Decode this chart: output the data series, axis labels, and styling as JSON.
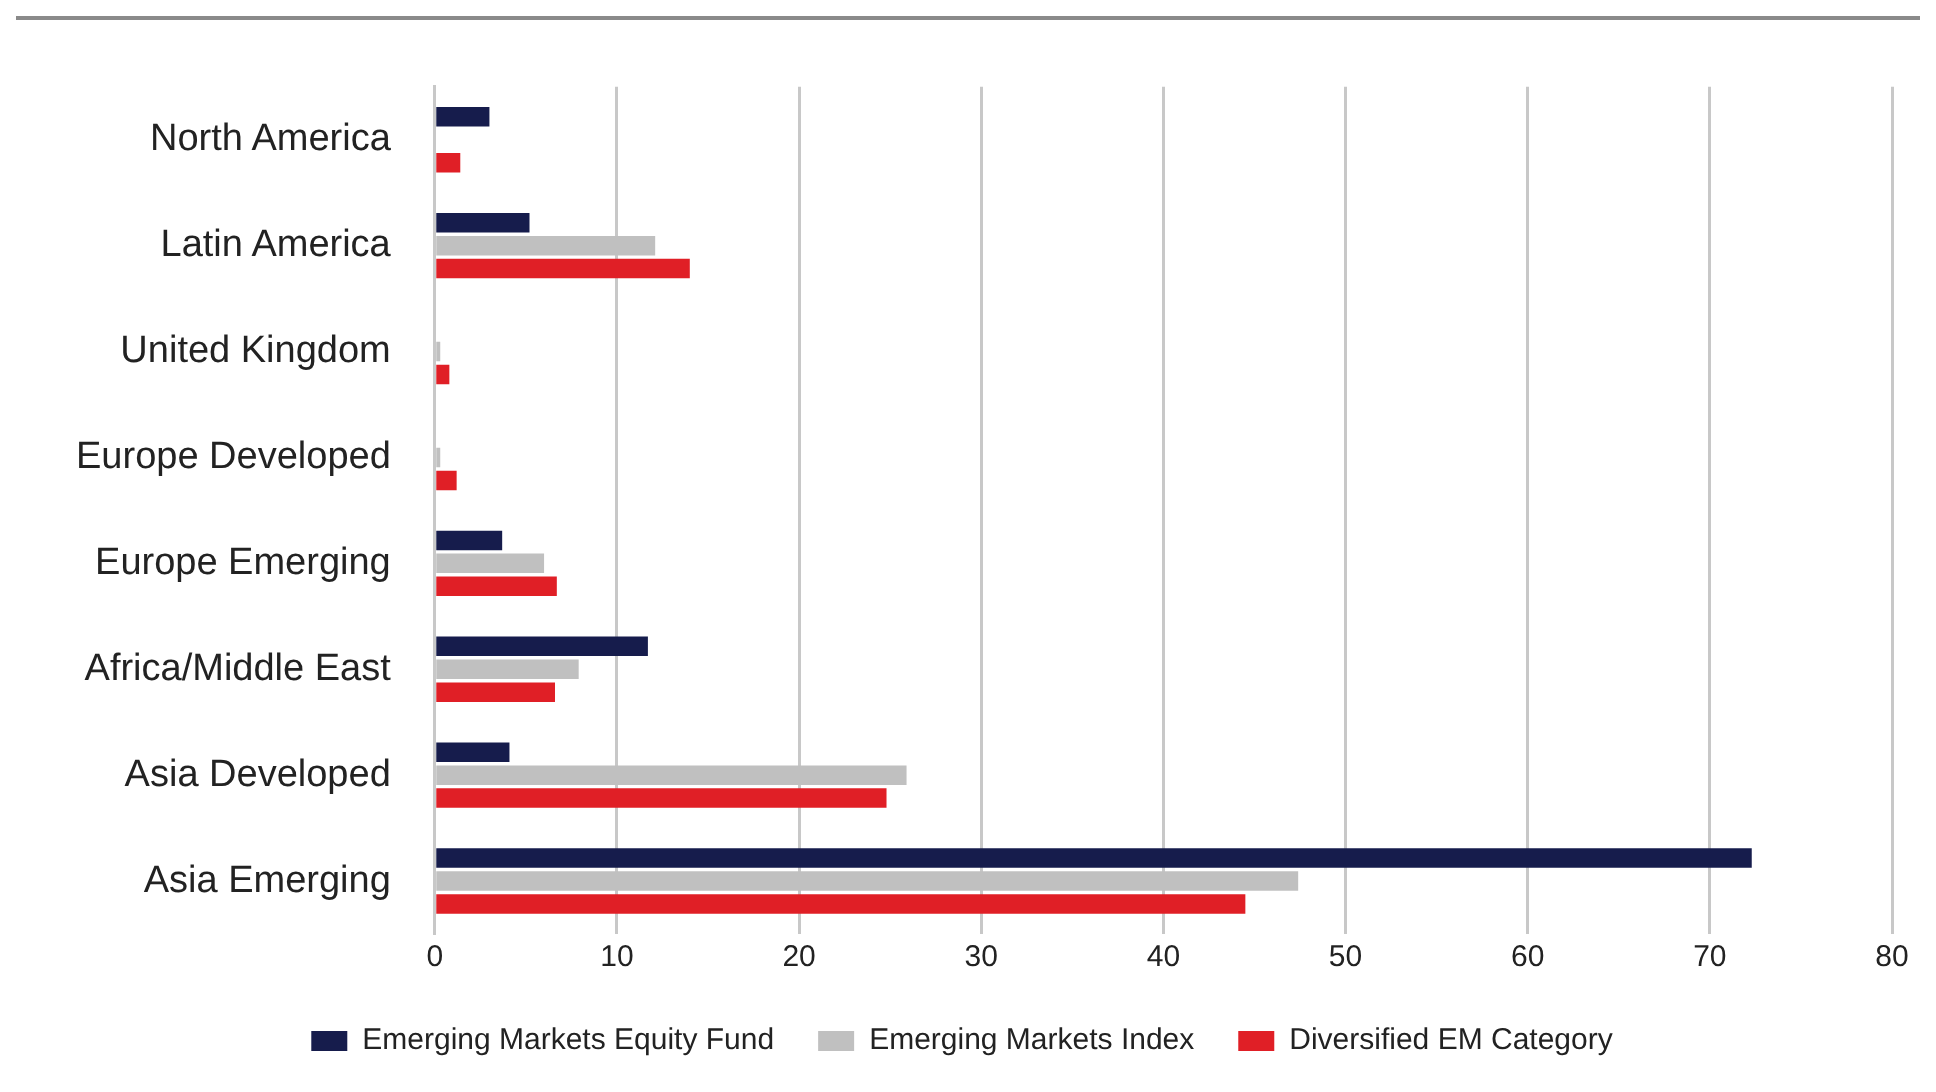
{
  "chart_data": {
    "type": "bar",
    "orientation": "horizontal",
    "categories": [
      "North America",
      "Latin America",
      "United Kingdom",
      "Europe Developed",
      "Europe Emerging",
      "Africa/Middle East",
      "Asia Developed",
      "Asia Emerging"
    ],
    "series": [
      {
        "name": "Emerging Markets Equity Fund",
        "color": "#161c4c",
        "values": [
          3.0,
          5.2,
          null,
          null,
          3.7,
          11.7,
          4.1,
          72.3
        ]
      },
      {
        "name": "Emerging Markets Index",
        "color": "#c0c0c0",
        "values": [
          null,
          12.1,
          0.3,
          0.3,
          6.0,
          7.9,
          25.9,
          47.4
        ]
      },
      {
        "name": "Diversified EM Category",
        "color": "#e01f26",
        "values": [
          1.4,
          14.0,
          0.8,
          1.2,
          6.7,
          6.6,
          24.8,
          44.5
        ]
      }
    ],
    "xlim": [
      0,
      80
    ],
    "xticks": [
      0,
      10,
      20,
      30,
      40,
      50,
      60,
      70,
      80
    ],
    "grid": "x",
    "legend": "bottom"
  }
}
